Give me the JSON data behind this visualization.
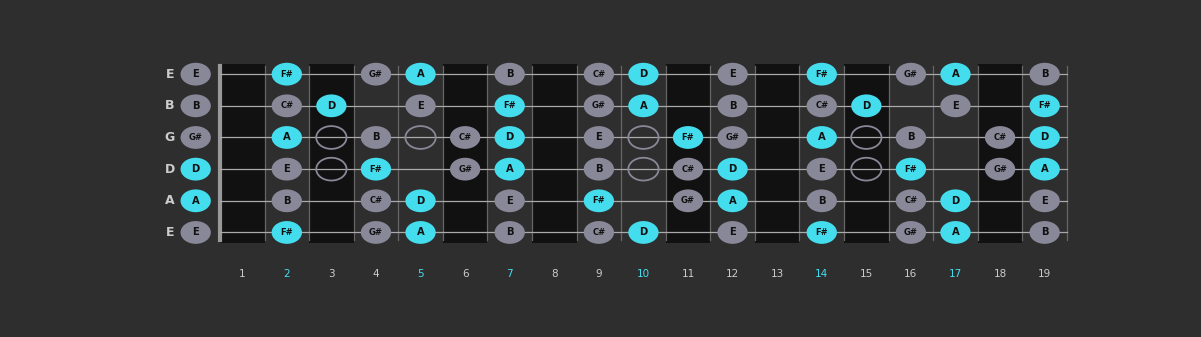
{
  "bg_color": "#2e2e2e",
  "fret_dark_color": "#1a1a1a",
  "fret_line_color": "#666666",
  "string_color": "#aaaaaa",
  "label_color": "#cccccc",
  "fret_num_color": "#cccccc",
  "cyan": "#44ddee",
  "gray": "#888899",
  "open_edge": "#888899",
  "note_text": "#111111",
  "d_major": [
    "D",
    "F#",
    "A"
  ],
  "num_frets": 19,
  "fret_num_cyan": [
    2,
    5,
    7,
    10,
    14,
    17
  ],
  "notes_per_string": {
    "E_high": {
      "0": "E",
      "2": "F#",
      "4": "G#",
      "5": "A",
      "7": "B",
      "9": "C#",
      "10": "D",
      "12": "E",
      "14": "F#",
      "16": "G#",
      "17": "A",
      "19": "B"
    },
    "B": {
      "0": "B",
      "2": "C#",
      "3": "D",
      "5": "E",
      "7": "F#",
      "9": "G#",
      "10": "A",
      "12": "B",
      "14": "C#",
      "15": "D",
      "17": "E",
      "19": "F#"
    },
    "G": {
      "0": "G#",
      "2": "A",
      "4": "B",
      "6": "C#",
      "7": "D",
      "9": "E",
      "11": "F#",
      "12": "G#",
      "14": "A",
      "16": "B",
      "18": "C#",
      "19": "D"
    },
    "D": {
      "0": "D",
      "2": "E",
      "4": "F#",
      "6": "G#",
      "7": "A",
      "9": "B",
      "11": "C#",
      "12": "D",
      "14": "E",
      "16": "F#",
      "18": "G#",
      "19": "A"
    },
    "A": {
      "0": "A",
      "2": "B",
      "4": "C#",
      "5": "D",
      "7": "E",
      "9": "F#",
      "11": "G#",
      "12": "A",
      "14": "B",
      "16": "C#",
      "17": "D",
      "19": "E"
    },
    "E_low": {
      "0": "E",
      "2": "F#",
      "4": "G#",
      "5": "A",
      "7": "B",
      "9": "C#",
      "10": "D",
      "12": "E",
      "14": "F#",
      "16": "G#",
      "17": "A",
      "19": "B"
    }
  },
  "open_holes": {
    "G": [
      3,
      5,
      10,
      15
    ],
    "D": [
      3,
      10,
      15
    ]
  },
  "string_names": [
    "E",
    "B",
    "G",
    "D",
    "A",
    "E"
  ]
}
